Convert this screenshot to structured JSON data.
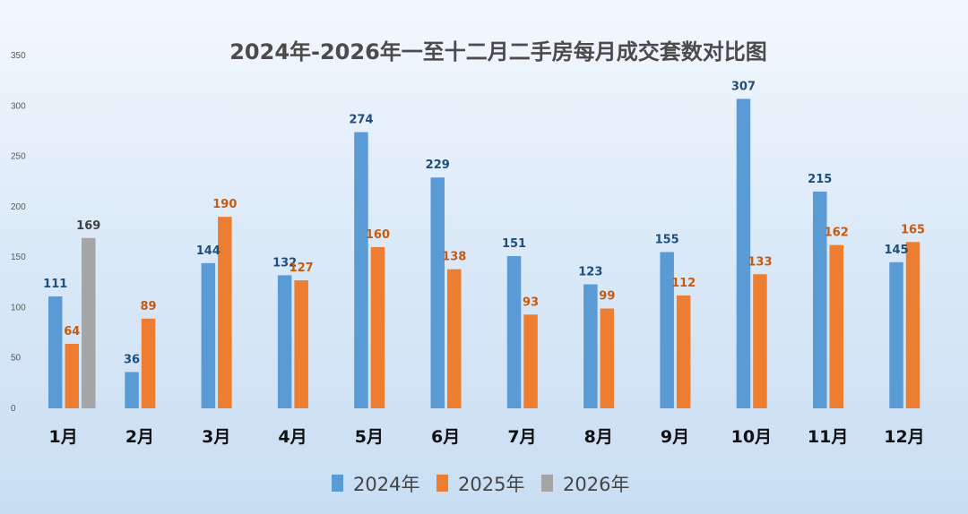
{
  "chart_data": {
    "type": "bar",
    "title": "2024年-2026年一至十二月二手房每月成交套数对比图",
    "categories": [
      "1月",
      "2月",
      "3月",
      "4月",
      "5月",
      "6月",
      "7月",
      "8月",
      "9月",
      "10月",
      "11月",
      "12月"
    ],
    "series": [
      {
        "name": "2024年",
        "color": "#5b9bd5",
        "label_color": "#1f4e79",
        "values": [
          111,
          36,
          144,
          132,
          274,
          229,
          151,
          123,
          155,
          307,
          215,
          145
        ]
      },
      {
        "name": "2025年",
        "color": "#ed7d31",
        "label_color": "#c55a11",
        "values": [
          64,
          89,
          190,
          127,
          160,
          138,
          93,
          99,
          112,
          133,
          162,
          165
        ]
      },
      {
        "name": "2026年",
        "color": "#a5a5a5",
        "label_color": "#404040",
        "values": [
          169,
          null,
          null,
          null,
          null,
          null,
          null,
          null,
          null,
          null,
          null,
          null
        ]
      }
    ],
    "ylim": [
      0,
      350
    ],
    "yticks": [
      0,
      50,
      100,
      150,
      200,
      250,
      300,
      350
    ],
    "grid": false,
    "legend_position": "bottom"
  }
}
